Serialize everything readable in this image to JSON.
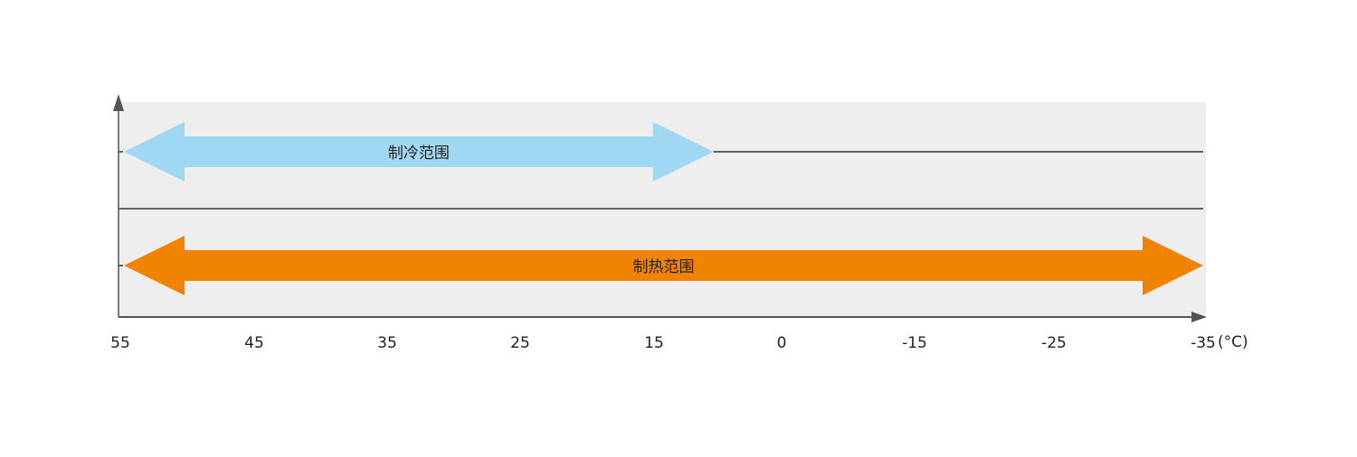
{
  "chart_data": {
    "type": "range-bar",
    "title": "",
    "xlabel": "",
    "unit": "(°C)",
    "x_tick_labels": [
      "55",
      "45",
      "35",
      "25",
      "15",
      "0",
      "-15",
      "-25",
      "-35"
    ],
    "x_ticks": [
      55,
      45,
      35,
      25,
      15,
      0,
      -15,
      -25,
      -35
    ],
    "grid": false,
    "series": [
      {
        "name": "制冷范围",
        "from": 55,
        "to": 8,
        "color": "#a0d8f4"
      },
      {
        "name": "制热范围",
        "from": 55,
        "to": -35,
        "color": "#f08300"
      }
    ],
    "colors": {
      "plot_background": "#eeeeee",
      "axis": "#555555",
      "line": "#333333",
      "text": "#222222"
    }
  }
}
